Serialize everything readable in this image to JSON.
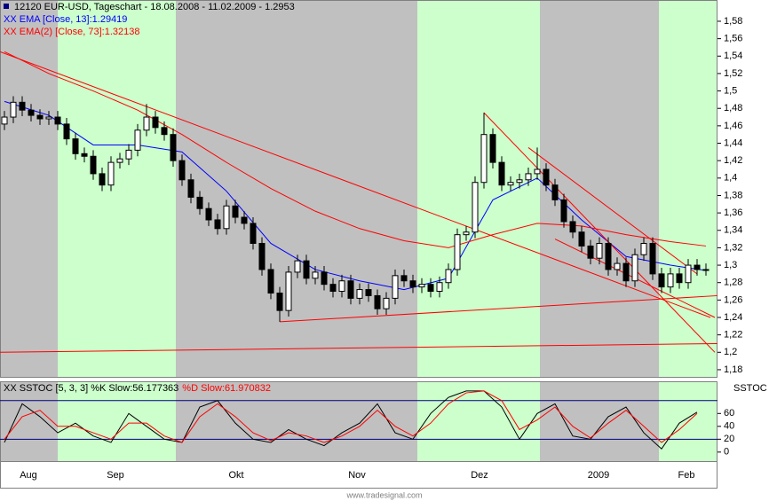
{
  "chart_data": [
    {
      "type": "candlestick",
      "title": "12120 EUR-USD, Tageschart - 18.08.2008 - 11.02.2009 - 1.2953",
      "open": [
        1.462,
        1.47,
        1.487,
        1.478,
        1.472,
        1.468,
        1.47,
        1.462,
        1.445,
        1.428,
        1.425,
        1.405,
        1.392,
        1.418,
        1.422,
        1.432,
        1.455,
        1.47,
        1.458,
        1.45,
        1.42,
        1.398,
        1.378,
        1.365,
        1.352,
        1.342,
        1.368,
        1.355,
        1.348,
        1.325,
        1.295,
        1.268,
        1.248,
        1.292,
        1.305,
        1.285,
        1.292,
        1.278,
        1.27,
        1.282,
        1.262,
        1.272,
        1.265,
        1.25,
        1.262,
        1.288,
        1.282,
        1.275,
        1.278,
        1.27,
        1.28,
        1.295,
        1.335,
        1.338,
        1.395,
        1.45,
        1.418,
        1.392,
        1.395,
        1.398,
        1.405,
        1.41,
        1.392,
        1.375,
        1.35,
        1.338,
        1.322,
        1.308,
        1.325,
        1.295,
        1.302,
        1.282,
        1.312,
        1.325,
        1.29,
        1.275,
        1.29,
        1.28,
        1.3,
        1.295
      ],
      "high": [
        1.477,
        1.494,
        1.494,
        1.485,
        1.479,
        1.477,
        1.477,
        1.469,
        1.452,
        1.435,
        1.432,
        1.412,
        1.425,
        1.429,
        1.439,
        1.462,
        1.485,
        1.477,
        1.465,
        1.457,
        1.427,
        1.405,
        1.385,
        1.372,
        1.359,
        1.375,
        1.375,
        1.362,
        1.355,
        1.332,
        1.302,
        1.275,
        1.299,
        1.312,
        1.312,
        1.299,
        1.299,
        1.285,
        1.289,
        1.289,
        1.279,
        1.279,
        1.272,
        1.269,
        1.295,
        1.295,
        1.289,
        1.285,
        1.285,
        1.287,
        1.302,
        1.342,
        1.345,
        1.402,
        1.475,
        1.457,
        1.425,
        1.402,
        1.405,
        1.412,
        1.435,
        1.417,
        1.399,
        1.382,
        1.357,
        1.345,
        1.329,
        1.332,
        1.332,
        1.309,
        1.309,
        1.319,
        1.332,
        1.332,
        1.297,
        1.297,
        1.297,
        1.307,
        1.307,
        1.302
      ],
      "low": [
        1.455,
        1.463,
        1.471,
        1.465,
        1.461,
        1.461,
        1.455,
        1.438,
        1.421,
        1.418,
        1.398,
        1.385,
        1.385,
        1.411,
        1.415,
        1.425,
        1.448,
        1.451,
        1.443,
        1.413,
        1.391,
        1.371,
        1.358,
        1.345,
        1.335,
        1.335,
        1.348,
        1.341,
        1.318,
        1.288,
        1.261,
        1.235,
        1.241,
        1.285,
        1.278,
        1.278,
        1.271,
        1.263,
        1.263,
        1.255,
        1.255,
        1.258,
        1.243,
        1.243,
        1.255,
        1.275,
        1.268,
        1.268,
        1.263,
        1.263,
        1.273,
        1.288,
        1.328,
        1.331,
        1.388,
        1.411,
        1.385,
        1.385,
        1.388,
        1.391,
        1.398,
        1.385,
        1.368,
        1.343,
        1.331,
        1.315,
        1.301,
        1.301,
        1.288,
        1.288,
        1.275,
        1.275,
        1.305,
        1.283,
        1.268,
        1.268,
        1.273,
        1.273,
        1.288,
        1.288
      ],
      "close": [
        1.47,
        1.487,
        1.478,
        1.472,
        1.468,
        1.47,
        1.462,
        1.445,
        1.428,
        1.425,
        1.405,
        1.392,
        1.418,
        1.422,
        1.432,
        1.455,
        1.47,
        1.458,
        1.45,
        1.42,
        1.398,
        1.378,
        1.365,
        1.352,
        1.342,
        1.368,
        1.355,
        1.348,
        1.325,
        1.295,
        1.268,
        1.248,
        1.292,
        1.305,
        1.285,
        1.292,
        1.278,
        1.27,
        1.282,
        1.262,
        1.272,
        1.265,
        1.25,
        1.262,
        1.288,
        1.282,
        1.275,
        1.278,
        1.27,
        1.28,
        1.295,
        1.335,
        1.338,
        1.395,
        1.45,
        1.418,
        1.392,
        1.395,
        1.398,
        1.405,
        1.41,
        1.392,
        1.375,
        1.35,
        1.338,
        1.322,
        1.308,
        1.325,
        1.295,
        1.302,
        1.282,
        1.312,
        1.325,
        1.29,
        1.275,
        1.29,
        1.28,
        1.3,
        1.295,
        1.295
      ],
      "up_color": "#ffffff",
      "down_color": "#000000",
      "xlim": [
        -0.5,
        80.3
      ],
      "xticks": [
        {
          "value": 2.7,
          "label": "Aug"
        },
        {
          "value": 12.5,
          "label": "Sep"
        },
        {
          "value": 26.1,
          "label": "Okt"
        },
        {
          "value": 39.7,
          "label": "Nov"
        },
        {
          "value": 53.5,
          "label": "Dez"
        },
        {
          "value": 66.9,
          "label": "2009"
        },
        {
          "value": 76.8,
          "label": "Feb"
        }
      ],
      "ylim": [
        1.1718,
        1.6044
      ],
      "yticks": [
        {
          "value": 1.18,
          "label": "1,18"
        },
        {
          "value": 1.2,
          "label": "1,2"
        },
        {
          "value": 1.22,
          "label": "1,22"
        },
        {
          "value": 1.24,
          "label": "1,24"
        },
        {
          "value": 1.26,
          "label": "1,26"
        },
        {
          "value": 1.28,
          "label": "1,28"
        },
        {
          "value": 1.3,
          "label": "1,3"
        },
        {
          "value": 1.32,
          "label": "1,32"
        },
        {
          "value": 1.34,
          "label": "1,34"
        },
        {
          "value": 1.36,
          "label": "1,36"
        },
        {
          "value": 1.38,
          "label": "1,38"
        },
        {
          "value": 1.4,
          "label": "1,4"
        },
        {
          "value": 1.42,
          "label": "1,42"
        },
        {
          "value": 1.44,
          "label": "1,44"
        },
        {
          "value": 1.46,
          "label": "1,46"
        },
        {
          "value": 1.48,
          "label": "1,48"
        },
        {
          "value": 1.5,
          "label": "1,5"
        },
        {
          "value": 1.52,
          "label": "1,52"
        },
        {
          "value": 1.54,
          "label": "1,54"
        },
        {
          "value": 1.56,
          "label": "1,56"
        },
        {
          "value": 1.58,
          "label": "1,58"
        }
      ],
      "series": [
        {
          "name": "XX EMA [Close, 13]:1.29419",
          "color": "#0000ff",
          "x": [
            0,
            5,
            10,
            15,
            20,
            25,
            30,
            35,
            40,
            45,
            50,
            55,
            60,
            65,
            70,
            75,
            79
          ],
          "values": [
            1.488,
            1.472,
            1.438,
            1.438,
            1.43,
            1.385,
            1.325,
            1.295,
            1.282,
            1.272,
            1.285,
            1.375,
            1.4,
            1.352,
            1.31,
            1.3,
            1.294
          ]
        },
        {
          "name": "XX EMA(2) [Close, 73]:1.32138",
          "color": "#ff0000",
          "x": [
            0,
            5,
            10,
            15,
            20,
            25,
            30,
            35,
            40,
            45,
            50,
            55,
            60,
            65,
            70,
            75,
            79
          ],
          "values": [
            1.545,
            1.52,
            1.5,
            1.478,
            1.45,
            1.418,
            1.388,
            1.362,
            1.342,
            1.328,
            1.32,
            1.335,
            1.348,
            1.345,
            1.335,
            1.327,
            1.322
          ]
        }
      ],
      "trendlines": [
        {
          "color": "#ff0000",
          "x": [
            -0.5,
            79.5
          ],
          "values": [
            1.545,
            1.24
          ]
        },
        {
          "color": "#ff0000",
          "x": [
            54,
            80
          ],
          "values": [
            1.475,
            1.2
          ]
        },
        {
          "color": "#ff0000",
          "x": [
            59,
            78
          ],
          "values": [
            1.435,
            1.29
          ]
        },
        {
          "color": "#ff0000",
          "x": [
            31,
            80.3
          ],
          "values": [
            1.235,
            1.265
          ]
        },
        {
          "color": "#ff0000",
          "x": [
            -0.5,
            80.3
          ],
          "values": [
            1.2,
            1.21
          ]
        },
        {
          "color": "#ff0000",
          "x": [
            62,
            80
          ],
          "values": [
            1.33,
            1.24
          ]
        }
      ]
    },
    {
      "type": "line",
      "title": "SSTOC",
      "xlim": [
        -0.5,
        80.3
      ],
      "ylim": [
        -14,
        110
      ],
      "yticks": [
        0,
        20,
        40,
        60
      ],
      "levels": [
        20,
        80
      ],
      "level_color": "#000080",
      "series": [
        {
          "name": "XX SSTOC [5, 3, 3] %K Slow:56.177363",
          "color": "#000000",
          "x": [
            0,
            2,
            4,
            6,
            8,
            10,
            12,
            14,
            16,
            18,
            20,
            22,
            24,
            26,
            28,
            30,
            32,
            34,
            36,
            38,
            40,
            42,
            44,
            46,
            48,
            50,
            52,
            54,
            56,
            58,
            60,
            62,
            64,
            66,
            68,
            70,
            72,
            74,
            76,
            78
          ],
          "values": [
            15,
            75,
            55,
            30,
            45,
            25,
            15,
            60,
            40,
            20,
            15,
            70,
            80,
            45,
            20,
            15,
            35,
            20,
            10,
            30,
            45,
            75,
            30,
            20,
            60,
            85,
            95,
            95,
            70,
            20,
            60,
            75,
            25,
            20,
            55,
            70,
            30,
            5,
            45,
            62
          ]
        },
        {
          "name": "%D Slow:61.970832",
          "color": "#ff0000",
          "x": [
            0,
            2,
            4,
            6,
            8,
            10,
            12,
            14,
            16,
            18,
            20,
            22,
            24,
            26,
            28,
            30,
            32,
            34,
            36,
            38,
            40,
            42,
            44,
            46,
            48,
            50,
            52,
            54,
            56,
            58,
            60,
            62,
            64,
            66,
            68,
            70,
            72,
            74,
            76,
            78
          ],
          "values": [
            20,
            55,
            65,
            40,
            40,
            30,
            20,
            45,
            45,
            25,
            15,
            55,
            75,
            55,
            30,
            18,
            30,
            25,
            15,
            25,
            40,
            65,
            40,
            25,
            45,
            75,
            92,
            95,
            80,
            35,
            50,
            70,
            40,
            22,
            45,
            65,
            40,
            15,
            35,
            60
          ]
        }
      ]
    }
  ],
  "footer": "www.tradesignal.com"
}
